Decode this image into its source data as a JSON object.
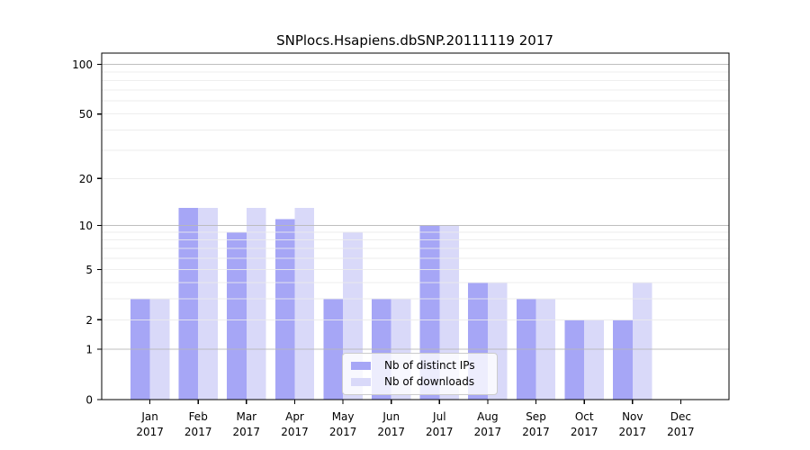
{
  "chart_data": {
    "type": "bar",
    "title": "SNPlocs.Hsapiens.dbSNP.20111119 2017",
    "categories": [
      "Jan",
      "Feb",
      "Mar",
      "Apr",
      "May",
      "Jun",
      "Jul",
      "Aug",
      "Sep",
      "Oct",
      "Nov",
      "Dec"
    ],
    "year_labels": [
      "2017",
      "2017",
      "2017",
      "2017",
      "2017",
      "2017",
      "2017",
      "2017",
      "2017",
      "2017",
      "2017",
      "2017"
    ],
    "series": [
      {
        "name": "Nb of distinct IPs",
        "color": "#a6a6f6",
        "values": [
          3,
          13,
          9,
          11,
          3,
          3,
          10,
          4,
          3,
          2,
          2,
          0
        ]
      },
      {
        "name": "Nb of downloads",
        "color": "#d9d9f9",
        "values": [
          3,
          13,
          13,
          13,
          9,
          3,
          10,
          4,
          3,
          2,
          4,
          0
        ]
      }
    ],
    "xlabel": "",
    "ylabel": "",
    "yscale": "log1p",
    "ylim": [
      0,
      117
    ],
    "yticks": [
      0,
      1,
      2,
      5,
      10,
      20,
      50,
      100
    ],
    "major_gridlines": [
      1,
      10,
      100
    ],
    "minor_gridlines": [
      2,
      3,
      4,
      5,
      6,
      7,
      8,
      9,
      20,
      30,
      40,
      50,
      60,
      70,
      80,
      90
    ],
    "grid": "on",
    "legend_position": "bottom-center",
    "colors": {
      "bar_distinct_ips": "#a6a6f6",
      "bar_downloads": "#d9d9f9",
      "major_grid": "#b8b8b8",
      "minor_grid": "#ebebeb",
      "axis": "#000000",
      "background": "#ffffff"
    }
  }
}
